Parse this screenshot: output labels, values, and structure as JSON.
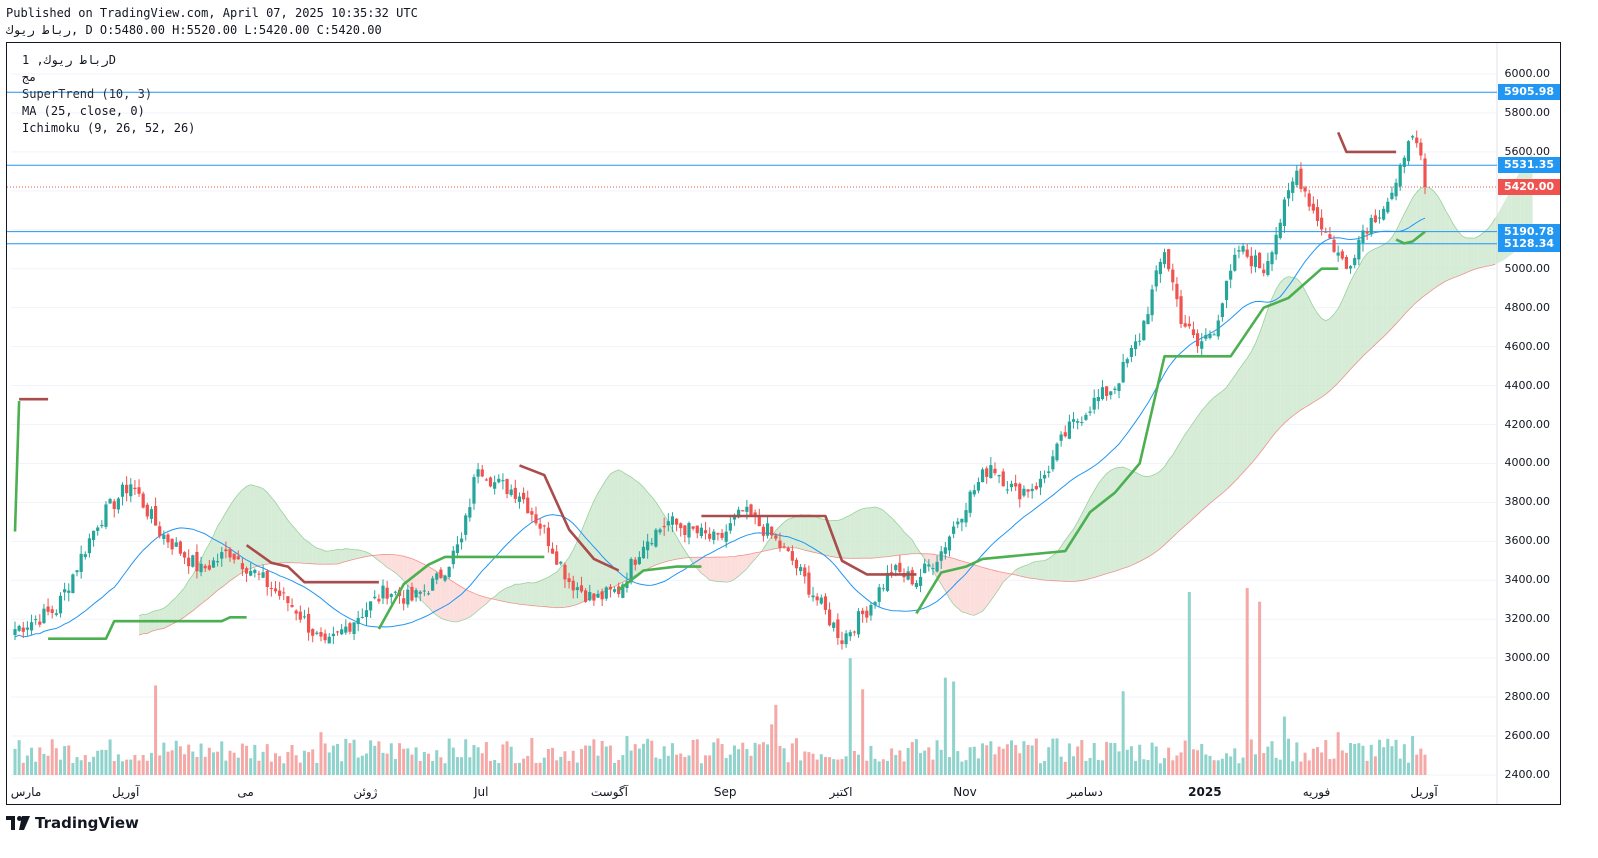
{
  "header": {
    "published": "Published on TradingView.com, April 07, 2025 10:35:32 UTC",
    "ohlc": "رباط ريوك, D O:5480.00 H:5520.00 L:5420.00 C:5420.00"
  },
  "legend": {
    "symbol": "رباط ريوك, 1D",
    "exchange": "مج",
    "supertrend": "SuperTrend (10, 3)",
    "ma": "MA (25, close, 0)",
    "ichimoku": "Ichimoku (9, 26, 52, 26)"
  },
  "brand": {
    "name": "TradingView"
  },
  "colors": {
    "up": "#26a69a",
    "down": "#ef5350",
    "up_volume": "#8fd3cc",
    "down_volume": "#f5a9a7",
    "supertrend_up": "#4caf50",
    "supertrend_down": "#a94c4c",
    "ma": "#2196f3",
    "hline": "#2196f3",
    "last_price": "#ef5350",
    "cloud_bull": "#c8e6c9",
    "cloud_bear": "#fbd4d2"
  },
  "price_labels": [
    {
      "value": "5905.98",
      "kind": "hline"
    },
    {
      "value": "5531.35",
      "kind": "hline"
    },
    {
      "value": "5420.00",
      "kind": "last"
    },
    {
      "value": "5190.78",
      "kind": "hline"
    },
    {
      "value": "5128.34",
      "kind": "hline"
    }
  ],
  "chart_data": {
    "type": "candlestick",
    "ylim": [
      2400,
      6100
    ],
    "y_ticks": [
      "6000.00",
      "5800.00",
      "5600.00",
      "5400.00",
      "5200.00",
      "5000.00",
      "4800.00",
      "4600.00",
      "4400.00",
      "4200.00",
      "4000.00",
      "3800.00",
      "3600.00",
      "3400.00",
      "3200.00",
      "3000.00",
      "2800.00",
      "2600.00",
      "2400.00"
    ],
    "x_ticks": [
      {
        "label": "مارس",
        "bold": false
      },
      {
        "label": "آوريل",
        "bold": false
      },
      {
        "label": "مى",
        "bold": false
      },
      {
        "label": "ژوئن",
        "bold": false
      },
      {
        "label": "Jul",
        "bold": false
      },
      {
        "label": "آگوست",
        "bold": false
      },
      {
        "label": "Sep",
        "bold": false
      },
      {
        "label": "اكتبر",
        "bold": false
      },
      {
        "label": "Nov",
        "bold": false
      },
      {
        "label": "دسامبر",
        "bold": false
      },
      {
        "label": "2025",
        "bold": true
      },
      {
        "label": "فوريه",
        "bold": false
      },
      {
        "label": "آوريل",
        "bold": false
      }
    ],
    "horizontal_lines": [
      5905.98,
      5531.35,
      5190.78,
      5128.34
    ],
    "last_price": 5420.0,
    "close_anchors": [
      [
        0,
        3150
      ],
      [
        10,
        3250
      ],
      [
        20,
        3700
      ],
      [
        28,
        3900
      ],
      [
        35,
        3650
      ],
      [
        45,
        3450
      ],
      [
        52,
        3550
      ],
      [
        60,
        3400
      ],
      [
        68,
        3250
      ],
      [
        75,
        3050
      ],
      [
        82,
        3200
      ],
      [
        90,
        3350
      ],
      [
        96,
        3300
      ],
      [
        102,
        3400
      ],
      [
        108,
        3600
      ],
      [
        112,
        4000
      ],
      [
        116,
        3900
      ],
      [
        122,
        3850
      ],
      [
        128,
        3650
      ],
      [
        134,
        3400
      ],
      [
        140,
        3300
      ],
      [
        146,
        3350
      ],
      [
        152,
        3600
      ],
      [
        158,
        3700
      ],
      [
        164,
        3650
      ],
      [
        170,
        3600
      ],
      [
        176,
        3750
      ],
      [
        182,
        3650
      ],
      [
        188,
        3500
      ],
      [
        194,
        3300
      ],
      [
        200,
        3100
      ],
      [
        206,
        3250
      ],
      [
        212,
        3450
      ],
      [
        218,
        3400
      ],
      [
        224,
        3550
      ],
      [
        230,
        3800
      ],
      [
        236,
        4000
      ],
      [
        242,
        3850
      ],
      [
        248,
        3900
      ],
      [
        254,
        4150
      ],
      [
        260,
        4300
      ],
      [
        266,
        4400
      ],
      [
        272,
        4650
      ],
      [
        278,
        5100
      ],
      [
        282,
        4750
      ],
      [
        286,
        4600
      ],
      [
        290,
        4700
      ],
      [
        296,
        5100
      ],
      [
        302,
        5000
      ],
      [
        306,
        5250
      ],
      [
        310,
        5500
      ],
      [
        314,
        5300
      ],
      [
        318,
        5150
      ],
      [
        322,
        5000
      ],
      [
        326,
        5200
      ],
      [
        330,
        5300
      ],
      [
        334,
        5400
      ],
      [
        337,
        5700
      ],
      [
        340,
        5550
      ],
      [
        341,
        5420
      ]
    ],
    "volume_spikes": [
      [
        34,
        2860
      ],
      [
        74,
        2620
      ],
      [
        148,
        2600
      ],
      [
        183,
        2660
      ],
      [
        184,
        2760
      ],
      [
        202,
        3000
      ],
      [
        205,
        2840
      ],
      [
        225,
        2900
      ],
      [
        227,
        2880
      ],
      [
        268,
        2830
      ],
      [
        284,
        3340
      ],
      [
        298,
        3360
      ],
      [
        301,
        3290
      ],
      [
        307,
        2700
      ],
      [
        320,
        2620
      ],
      [
        338,
        2600
      ]
    ],
    "supertrend": [
      {
        "dir": "up",
        "points": [
          [
            0,
            3650
          ],
          [
            1,
            4320
          ]
        ]
      },
      {
        "dir": "down",
        "points": [
          [
            1,
            4330
          ],
          [
            8,
            4330
          ]
        ]
      },
      {
        "dir": "up",
        "points": [
          [
            8,
            3100
          ],
          [
            22,
            3100
          ],
          [
            24,
            3190
          ],
          [
            50,
            3190
          ],
          [
            52,
            3210
          ],
          [
            56,
            3210
          ]
        ]
      },
      {
        "dir": "down",
        "points": [
          [
            56,
            3580
          ],
          [
            62,
            3490
          ],
          [
            66,
            3470
          ],
          [
            70,
            3390
          ],
          [
            88,
            3390
          ]
        ]
      },
      {
        "dir": "up",
        "points": [
          [
            88,
            3150
          ],
          [
            94,
            3380
          ],
          [
            100,
            3480
          ],
          [
            104,
            3520
          ],
          [
            116,
            3520
          ],
          [
            128,
            3520
          ]
        ]
      },
      {
        "dir": "down",
        "points": [
          [
            122,
            3990
          ],
          [
            128,
            3940
          ],
          [
            134,
            3660
          ],
          [
            140,
            3510
          ],
          [
            146,
            3450
          ]
        ]
      },
      {
        "dir": "up",
        "points": [
          [
            146,
            3350
          ],
          [
            152,
            3450
          ],
          [
            160,
            3470
          ],
          [
            166,
            3470
          ]
        ]
      },
      {
        "dir": "down",
        "points": [
          [
            166,
            3730
          ],
          [
            196,
            3730
          ],
          [
            200,
            3500
          ],
          [
            206,
            3430
          ],
          [
            218,
            3430
          ]
        ]
      },
      {
        "dir": "up",
        "points": [
          [
            218,
            3230
          ],
          [
            224,
            3440
          ],
          [
            230,
            3470
          ],
          [
            234,
            3510
          ],
          [
            254,
            3550
          ],
          [
            260,
            3750
          ],
          [
            266,
            3850
          ],
          [
            272,
            4000
          ],
          [
            278,
            4550
          ],
          [
            294,
            4550
          ],
          [
            302,
            4800
          ],
          [
            308,
            4850
          ],
          [
            316,
            5000
          ],
          [
            320,
            5000
          ]
        ]
      },
      {
        "dir": "down",
        "points": [
          [
            320,
            5700
          ],
          [
            322,
            5600
          ],
          [
            332,
            5600
          ],
          [
            334,
            5600
          ]
        ]
      },
      {
        "dir": "up",
        "points": [
          [
            334,
            5150
          ],
          [
            336,
            5130
          ],
          [
            338,
            5140
          ],
          [
            341,
            5190
          ]
        ]
      }
    ]
  }
}
